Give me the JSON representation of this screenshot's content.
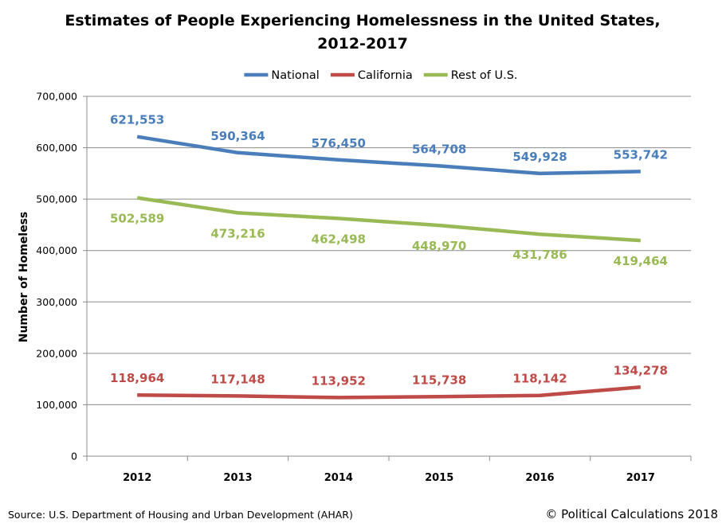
{
  "chart_data": {
    "type": "line",
    "title_lines": [
      "Estimates of People Experiencing Homelessness in the United States,",
      "2012-2017"
    ],
    "xlabel": "",
    "ylabel": "Number of Homeless",
    "categories": [
      "2012",
      "2013",
      "2014",
      "2015",
      "2016",
      "2017"
    ],
    "ylim": [
      0,
      700000
    ],
    "yticks": [
      0,
      100000,
      200000,
      300000,
      400000,
      500000,
      600000,
      700000
    ],
    "ytick_labels": [
      "0",
      "100,000",
      "200,000",
      "300,000",
      "400,000",
      "500,000",
      "600,000",
      "700,000"
    ],
    "grid": true,
    "legend_position": "top-center",
    "series": [
      {
        "name": "National",
        "color": "#4a7ebb",
        "values": [
          621553,
          590364,
          576450,
          564708,
          549928,
          553742
        ],
        "labels": [
          "621,553",
          "590,364",
          "576,450",
          "564,708",
          "549,928",
          "553,742"
        ],
        "label_position": "above"
      },
      {
        "name": "California",
        "color": "#be4b48",
        "values": [
          118964,
          117148,
          113952,
          115738,
          118142,
          134278
        ],
        "labels": [
          "118,964",
          "117,148",
          "113,952",
          "115,738",
          "118,142",
          "134,278"
        ],
        "label_position": "above"
      },
      {
        "name": "Rest of U.S.",
        "color": "#98b954",
        "values": [
          502589,
          473216,
          462498,
          448970,
          431786,
          419464
        ],
        "labels": [
          "502,589",
          "473,216",
          "462,498",
          "448,970",
          "431,786",
          "419,464"
        ],
        "label_position": "below"
      }
    ]
  },
  "footer": {
    "source": "Source: U.S. Department of Housing and Urban Development (AHAR)",
    "copyright": "© Political Calculations 2018"
  }
}
